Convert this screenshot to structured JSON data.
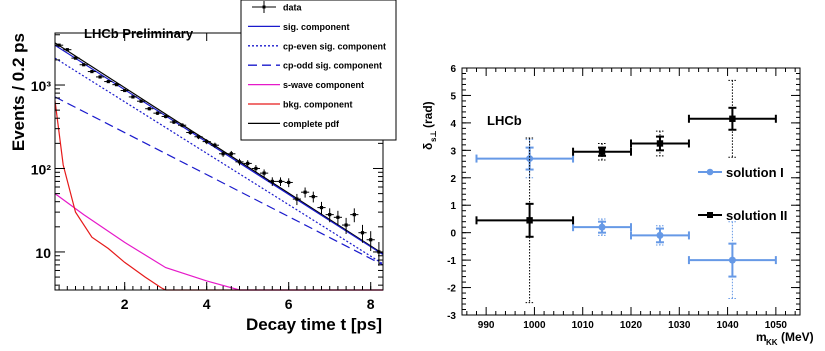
{
  "chart_data": [
    {
      "type": "scatter",
      "annotation": "LHCb Preliminary",
      "xlabel": "Decay time t [ps]",
      "ylabel": "Events / 0.2 ps",
      "xlim": [
        0.3,
        8.3
      ],
      "ylim": [
        3.5,
        4200
      ],
      "yscale": "log",
      "x_ticks": [
        2,
        4,
        6,
        8
      ],
      "y_ticks": [
        {
          "value": 10,
          "label": "10"
        },
        {
          "value": 100,
          "label": "10²"
        },
        {
          "value": 1000,
          "label": "10³"
        }
      ],
      "legend_position": "top-right",
      "legend": [
        {
          "label": "data",
          "style": "data",
          "color": "#000000"
        },
        {
          "label": "sig. component",
          "style": "solid",
          "color": "#1a1acc"
        },
        {
          "label": "cp-even sig. component",
          "style": "dotted",
          "color": "#1a1acc"
        },
        {
          "label": "cp-odd sig. component",
          "style": "dashed",
          "color": "#1a1acc"
        },
        {
          "label": "s-wave component",
          "style": "solid",
          "color": "#e619c9"
        },
        {
          "label": "bkg. component",
          "style": "solid",
          "color": "#e61a1a"
        },
        {
          "label": "complete pdf",
          "style": "solid",
          "color": "#000000"
        }
      ],
      "curves": [
        {
          "label": "complete pdf",
          "color": "#000000",
          "style": "solid",
          "x": [
            0.3,
            8.3
          ],
          "y": [
            3200,
            9.5
          ]
        },
        {
          "label": "sig. component",
          "color": "#1a1acc",
          "style": "solid",
          "x": [
            0.3,
            8.3
          ],
          "y": [
            3000,
            9.3
          ]
        },
        {
          "label": "cp-even sig. component",
          "color": "#1a1acc",
          "style": "dotted",
          "x": [
            0.3,
            8.3
          ],
          "y": [
            2100,
            7.2
          ]
        },
        {
          "label": "cp-odd sig. component",
          "color": "#1a1acc",
          "style": "dashed",
          "x": [
            0.3,
            8.3
          ],
          "y": [
            720,
            7.0
          ]
        },
        {
          "label": "s-wave component",
          "color": "#e619c9",
          "style": "solid",
          "x": [
            0.3,
            1.0,
            2.0,
            3.0,
            4.0,
            4.8,
            8.3
          ],
          "y": [
            50,
            28,
            13,
            6.5,
            4.5,
            3.5,
            3.5
          ]
        },
        {
          "label": "bkg. component",
          "color": "#e61a1a",
          "style": "solid",
          "x": [
            0.3,
            0.5,
            0.8,
            1.2,
            1.6,
            2.0,
            2.5,
            2.9,
            3.0,
            8.3
          ],
          "y": [
            650,
            110,
            30,
            15,
            11,
            7.5,
            5,
            3.7,
            3.5,
            3.5
          ]
        }
      ],
      "data_points": {
        "x": [
          0.4,
          0.6,
          0.8,
          1.0,
          1.2,
          1.4,
          1.6,
          1.8,
          2.0,
          2.2,
          2.4,
          2.6,
          2.8,
          3.0,
          3.2,
          3.4,
          3.6,
          3.8,
          4.0,
          4.2,
          4.4,
          4.6,
          4.8,
          5.0,
          5.2,
          5.4,
          5.6,
          5.8,
          6.0,
          6.2,
          6.4,
          6.6,
          6.8,
          7.0,
          7.2,
          7.4,
          7.6,
          7.8,
          8.0,
          8.2
        ],
        "y": [
          3000,
          2650,
          2100,
          1750,
          1450,
          1250,
          1100,
          1010,
          860,
          720,
          640,
          520,
          460,
          420,
          360,
          330,
          270,
          240,
          210,
          190,
          150,
          150,
          120,
          115,
          100,
          88,
          70,
          70,
          68,
          43,
          52,
          46,
          34,
          28,
          26,
          21,
          28,
          17,
          14,
          10
        ]
      }
    },
    {
      "type": "scatter",
      "annotation": "LHCb",
      "xlabel": "m_KK (MeV)",
      "ylabel": "δ_s⊥ (rad)",
      "xlim": [
        985,
        1055
      ],
      "ylim": [
        -3,
        6
      ],
      "x_ticks": [
        990,
        1000,
        1010,
        1020,
        1030,
        1040,
        1050
      ],
      "y_ticks": [
        -3,
        -2,
        -1,
        0,
        1,
        2,
        3,
        4,
        5,
        6
      ],
      "legend_position": "center-right",
      "series": [
        {
          "name": "solution I",
          "color": "#6699e6",
          "marker": "circle",
          "points": [
            {
              "x": 999,
              "xlo": 988,
              "xhi": 1008,
              "y": 2.7,
              "stat": 0.4,
              "syst": 0.7
            },
            {
              "x": 1014,
              "xlo": 1008,
              "xhi": 1020,
              "y": 0.2,
              "stat": 0.2,
              "syst": 0.3
            },
            {
              "x": 1026,
              "xlo": 1020,
              "xhi": 1032,
              "y": -0.1,
              "stat": 0.25,
              "syst": 0.35
            },
            {
              "x": 1041,
              "xlo": 1032,
              "xhi": 1050,
              "y": -1.0,
              "stat": 0.6,
              "syst": 1.4
            }
          ]
        },
        {
          "name": "solution II",
          "color": "#000000",
          "marker": "square",
          "points": [
            {
              "x": 999,
              "xlo": 988,
              "xhi": 1008,
              "y": 0.45,
              "stat": 0.6,
              "syst": 3.0
            },
            {
              "x": 1014,
              "xlo": 1008,
              "xhi": 1020,
              "y": 2.95,
              "stat": 0.15,
              "syst": 0.3
            },
            {
              "x": 1026,
              "xlo": 1020,
              "xhi": 1032,
              "y": 3.25,
              "stat": 0.25,
              "syst": 0.45
            },
            {
              "x": 1041,
              "xlo": 1032,
              "xhi": 1050,
              "y": 4.15,
              "stat": 0.4,
              "syst": 1.4
            }
          ]
        }
      ]
    }
  ]
}
